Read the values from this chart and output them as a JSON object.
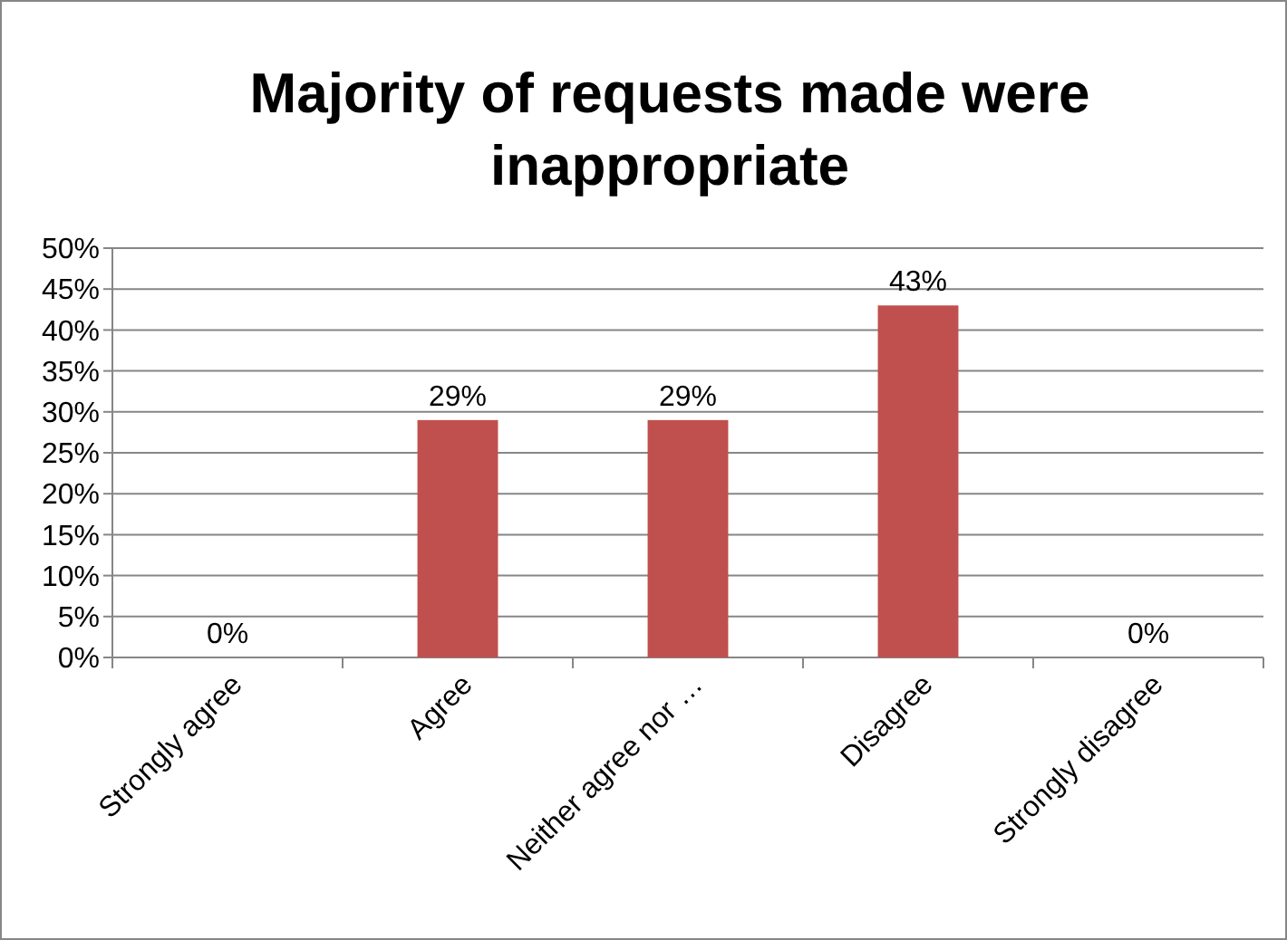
{
  "chart_data": {
    "type": "bar",
    "title": "Majority of requests made were inappropriate",
    "categories": [
      "Strongly agree",
      "Agree",
      "Neither agree nor …",
      "Disagree",
      "Strongly disagree"
    ],
    "values": [
      0,
      29,
      29,
      43,
      0
    ],
    "value_labels": [
      "0%",
      "29%",
      "29%",
      "43%",
      "0%"
    ],
    "color": "#c0504d",
    "ylim": [
      0,
      50
    ],
    "yticks": [
      {
        "value": 0,
        "label": "0%"
      },
      {
        "value": 5,
        "label": "5%"
      },
      {
        "value": 10,
        "label": "10%"
      },
      {
        "value": 15,
        "label": "15%"
      },
      {
        "value": 20,
        "label": "20%"
      },
      {
        "value": 25,
        "label": "25%"
      },
      {
        "value": 30,
        "label": "30%"
      },
      {
        "value": 35,
        "label": "35%"
      },
      {
        "value": 40,
        "label": "40%"
      },
      {
        "value": 45,
        "label": "45%"
      },
      {
        "value": 50,
        "label": "50%"
      }
    ],
    "grid": "y"
  }
}
